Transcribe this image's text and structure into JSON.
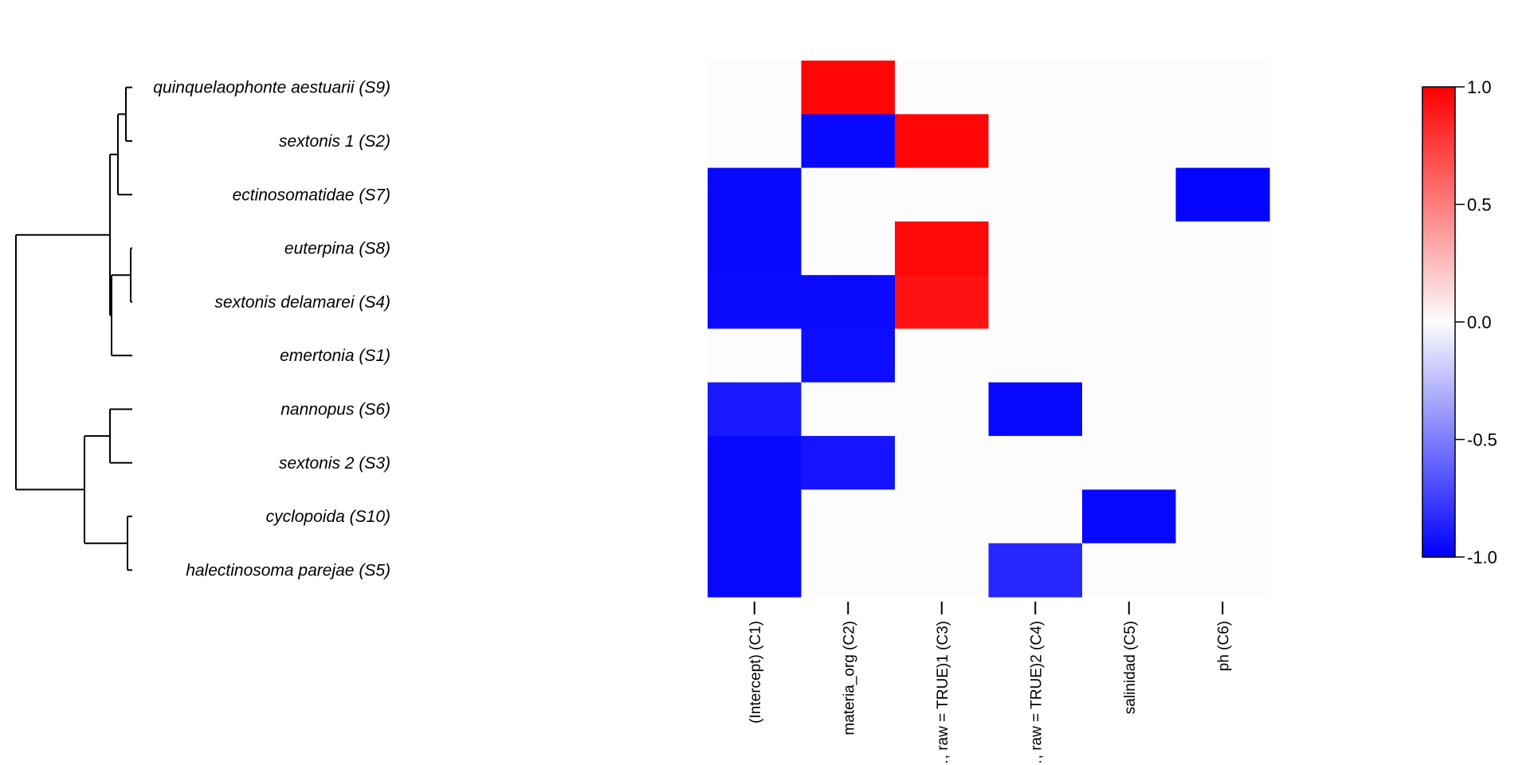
{
  "chart_data": {
    "type": "heatmap",
    "rows": [
      "quinquelaophonte aestuarii (S9)",
      "sextonis 1 (S2)",
      "ectinosomatidae (S7)",
      "euterpina (S8)",
      "sextonis delamarei (S4)",
      "emertonia (S1)",
      "nannopus (S6)",
      "sextonis 2 (S3)",
      "cyclopoida (S10)",
      "halectinosoma parejae (S5)"
    ],
    "columns": [
      "(Intercept) (C1)",
      "materia_org (C2)",
      "…, raw = TRUE)1 (C3)",
      "…, raw = TRUE)2 (C4)",
      "salinidad (C5)",
      "ph (C6)"
    ],
    "values": [
      [
        0,
        0.98,
        0,
        0,
        0,
        0
      ],
      [
        0,
        -0.97,
        0.98,
        0,
        0,
        0
      ],
      [
        -0.97,
        0,
        0,
        0,
        0,
        -0.98
      ],
      [
        -0.97,
        0,
        0.97,
        0,
        0,
        0
      ],
      [
        -0.96,
        -0.96,
        0.93,
        0,
        0,
        0
      ],
      [
        0,
        -0.95,
        0,
        0,
        0,
        0
      ],
      [
        -0.9,
        0,
        0,
        -0.97,
        0,
        0
      ],
      [
        -0.97,
        -0.92,
        0,
        0,
        0,
        0
      ],
      [
        -0.97,
        0,
        0,
        0,
        -0.97,
        0
      ],
      [
        -0.97,
        0,
        0,
        -0.85,
        0,
        0
      ]
    ],
    "colorbar": {
      "ticks": [
        "1.0",
        "0.5",
        "0.0",
        "-0.5",
        "-1.0"
      ],
      "range": [
        -1,
        1
      ],
      "colors": {
        "low": "#0000ff",
        "mid": "#ffffff",
        "high": "#ff0000"
      }
    },
    "dendrogram": {
      "leaf_order": [
        "S9",
        "S2",
        "S7",
        "S8",
        "S4",
        "S1",
        "S6",
        "S3",
        "S10",
        "S5"
      ]
    }
  }
}
